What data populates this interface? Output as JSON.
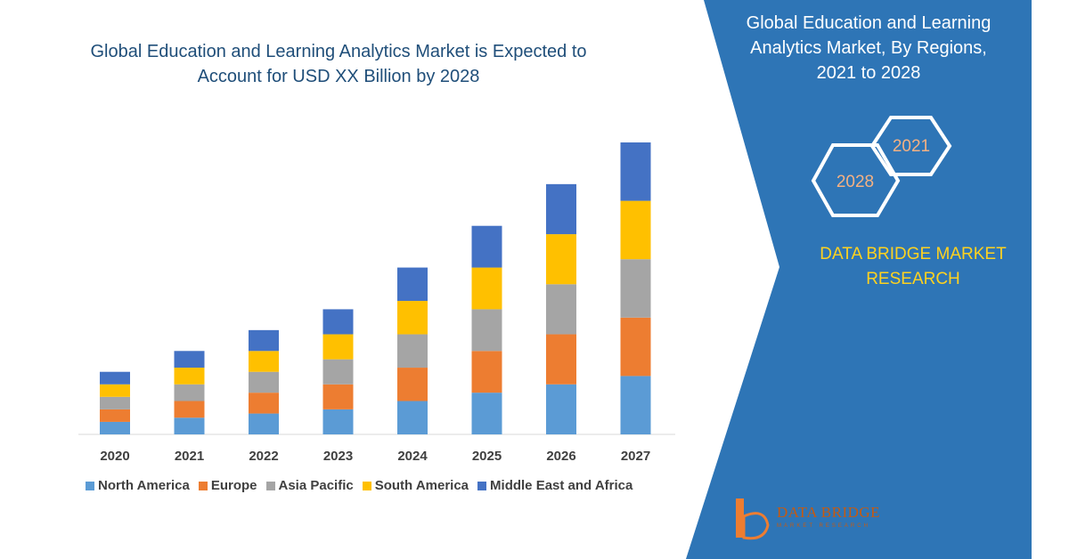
{
  "chart_title": [
    "Global Education and Learning Analytics Market is Expected to",
    "Account for USD XX Billion by 2028"
  ],
  "panel": {
    "title_lines": [
      "Global Education and Learning",
      "Analytics Market, By Regions,",
      "2021 to 2028"
    ],
    "hexagon_labels": [
      "2021",
      "2028"
    ],
    "brand_lines": [
      "DATA BRIDGE MARKET",
      "RESEARCH"
    ],
    "logo_name": "DATA BRIDGE",
    "logo_tagline": "MARKET RESEARCH"
  },
  "colors": {
    "panel_blue": "#2e75b6",
    "north_america": "#5b9bd5",
    "europe": "#ed7d31",
    "asia_pacific": "#a5a5a5",
    "south_america": "#ffc000",
    "middle_east_africa": "#4472c4",
    "brand_yellow": "#ffd21f"
  },
  "chart_data": {
    "type": "bar",
    "stacked": true,
    "categories": [
      "2020",
      "2021",
      "2022",
      "2023",
      "2024",
      "2025",
      "2026",
      "2027"
    ],
    "series": [
      {
        "name": "North America",
        "color": "#5b9bd5",
        "values": [
          3,
          4,
          5,
          6,
          8,
          10,
          12,
          14
        ]
      },
      {
        "name": "Europe",
        "color": "#ed7d31",
        "values": [
          3,
          4,
          5,
          6,
          8,
          10,
          12,
          14
        ]
      },
      {
        "name": "Asia Pacific",
        "color": "#a5a5a5",
        "values": [
          3,
          4,
          5,
          6,
          8,
          10,
          12,
          14
        ]
      },
      {
        "name": "South America",
        "color": "#ffc000",
        "values": [
          3,
          4,
          5,
          6,
          8,
          10,
          12,
          14
        ]
      },
      {
        "name": "Middle East and Africa",
        "color": "#4472c4",
        "values": [
          3,
          4,
          5,
          6,
          8,
          10,
          12,
          14
        ]
      }
    ],
    "ylim": [
      0,
      70
    ],
    "y_axis_visible": false,
    "grid": false,
    "legend_position": "bottom"
  }
}
